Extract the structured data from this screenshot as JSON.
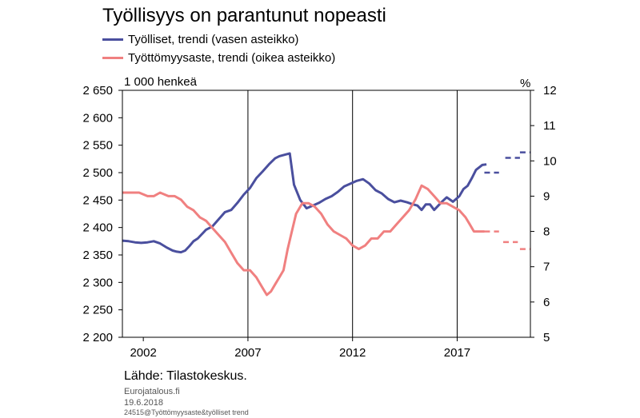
{
  "chart_data": {
    "type": "line",
    "title": "Työllisyys on parantunut nopeasti",
    "left_unit": "1 000 henkeä",
    "right_unit": "%",
    "left_ylim": [
      2200,
      2650
    ],
    "left_ticks": [
      "2 650",
      "2 600",
      "2 550",
      "2 500",
      "2 450",
      "2 400",
      "2 350",
      "2 300",
      "2 250",
      "2 200"
    ],
    "right_ylim": [
      5,
      12
    ],
    "right_ticks": [
      "12",
      "11",
      "10",
      "9",
      "8",
      "7",
      "6",
      "5"
    ],
    "xlim": [
      2001.0,
      2020.5
    ],
    "x_ticks": [
      "2002",
      "2007",
      "2012",
      "2017"
    ],
    "grid": "vertical lines at 2007, 2012, 2017",
    "colors": {
      "employed": "#4a4f9e",
      "unemployment": "#f08080"
    },
    "series": [
      {
        "name": "Työlliset, trendi (vasen asteikko)",
        "axis": "left",
        "x": [
          2001.0,
          2001.3,
          2001.6,
          2001.9,
          2002.2,
          2002.5,
          2002.8,
          2003.1,
          2003.4,
          2003.6,
          2003.8,
          2004.0,
          2004.2,
          2004.4,
          2004.6,
          2004.8,
          2005.0,
          2005.3,
          2005.6,
          2005.9,
          2006.2,
          2006.5,
          2006.8,
          2007.1,
          2007.4,
          2007.7,
          2008.0,
          2008.3,
          2008.5,
          2008.8,
          2009.0,
          2009.2,
          2009.5,
          2009.8,
          2010.1,
          2010.4,
          2010.7,
          2011.0,
          2011.3,
          2011.6,
          2011.9,
          2012.2,
          2012.5,
          2012.8,
          2013.1,
          2013.4,
          2013.7,
          2014.0,
          2014.3,
          2014.6,
          2014.9,
          2015.1,
          2015.3,
          2015.5,
          2015.7,
          2015.9,
          2016.1,
          2016.3,
          2016.5,
          2016.8,
          2017.1,
          2017.3,
          2017.5,
          2017.7,
          2017.9,
          2018.2,
          2018.4
        ],
        "values": [
          2376,
          2375,
          2373,
          2372,
          2373,
          2375,
          2371,
          2364,
          2358,
          2356,
          2355,
          2358,
          2366,
          2375,
          2380,
          2388,
          2396,
          2402,
          2415,
          2428,
          2432,
          2445,
          2460,
          2472,
          2490,
          2502,
          2515,
          2526,
          2530,
          2533,
          2535,
          2478,
          2450,
          2435,
          2440,
          2445,
          2452,
          2457,
          2465,
          2475,
          2480,
          2485,
          2488,
          2480,
          2468,
          2462,
          2452,
          2446,
          2449,
          2446,
          2442,
          2440,
          2432,
          2442,
          2442,
          2432,
          2440,
          2448,
          2455,
          2447,
          2457,
          2470,
          2476,
          2490,
          2505,
          2514,
          2515
        ]
      },
      {
        "name": "Työttömyysaste, trendi (oikea asteikko)",
        "axis": "right",
        "x": [
          2001.0,
          2001.4,
          2001.8,
          2002.2,
          2002.5,
          2002.8,
          2003.2,
          2003.5,
          2003.8,
          2004.1,
          2004.4,
          2004.7,
          2005.0,
          2005.3,
          2005.6,
          2005.9,
          2006.2,
          2006.5,
          2006.8,
          2007.1,
          2007.4,
          2007.7,
          2007.9,
          2008.1,
          2008.3,
          2008.5,
          2008.7,
          2008.9,
          2009.1,
          2009.3,
          2009.6,
          2009.9,
          2010.2,
          2010.5,
          2010.8,
          2011.1,
          2011.4,
          2011.7,
          2012.0,
          2012.3,
          2012.6,
          2012.9,
          2013.2,
          2013.5,
          2013.8,
          2014.1,
          2014.4,
          2014.7,
          2015.0,
          2015.3,
          2015.6,
          2015.9,
          2016.2,
          2016.5,
          2016.8,
          2017.1,
          2017.4,
          2017.6,
          2017.8,
          2018.0,
          2018.3
        ],
        "values": [
          9.1,
          9.1,
          9.1,
          9.0,
          9.0,
          9.1,
          9.0,
          9.0,
          8.9,
          8.7,
          8.6,
          8.4,
          8.3,
          8.1,
          7.9,
          7.7,
          7.4,
          7.1,
          6.9,
          6.9,
          6.7,
          6.4,
          6.2,
          6.3,
          6.5,
          6.7,
          6.9,
          7.5,
          8.0,
          8.5,
          8.8,
          8.8,
          8.7,
          8.5,
          8.2,
          8.0,
          7.9,
          7.8,
          7.6,
          7.5,
          7.6,
          7.8,
          7.8,
          8.0,
          8.0,
          8.2,
          8.4,
          8.6,
          8.9,
          9.3,
          9.2,
          9.0,
          8.8,
          8.8,
          8.7,
          8.6,
          8.4,
          8.2,
          8.0,
          8.0,
          8.0
        ]
      },
      {
        "name": "forecast-employed",
        "axis": "left",
        "style": "dashed",
        "segments": [
          {
            "x": [
              2018.3,
              2019.0
            ],
            "y": [
              2500,
              2500
            ]
          },
          {
            "x": [
              2019.3,
              2020.0
            ],
            "y": [
              2527,
              2527
            ]
          },
          {
            "x": [
              2020.0,
              2020.5
            ],
            "y": [
              2537,
              2537
            ]
          }
        ]
      },
      {
        "name": "forecast-unemployment",
        "axis": "right",
        "style": "dashed",
        "segments": [
          {
            "x": [
              2018.3,
              2019.0
            ],
            "y": [
              8.0,
              8.0
            ]
          },
          {
            "x": [
              2019.2,
              2019.9
            ],
            "y": [
              7.7,
              7.7
            ]
          },
          {
            "x": [
              2020.0,
              2020.5
            ],
            "y": [
              7.5,
              7.5
            ]
          }
        ]
      }
    ]
  },
  "legend": [
    {
      "label": "Työlliset, trendi (vasen asteikko)",
      "color": "#4a4f9e"
    },
    {
      "label": "Työttömyysaste, trendi (oikea asteikko)",
      "color": "#f08080"
    }
  ],
  "footer": {
    "source": "Lähde: Tilastokeskus.",
    "site": "Eurojatalous.fi",
    "date": "19.6.2018",
    "code": "24515@Työttömyysaste&työlliset trend"
  }
}
